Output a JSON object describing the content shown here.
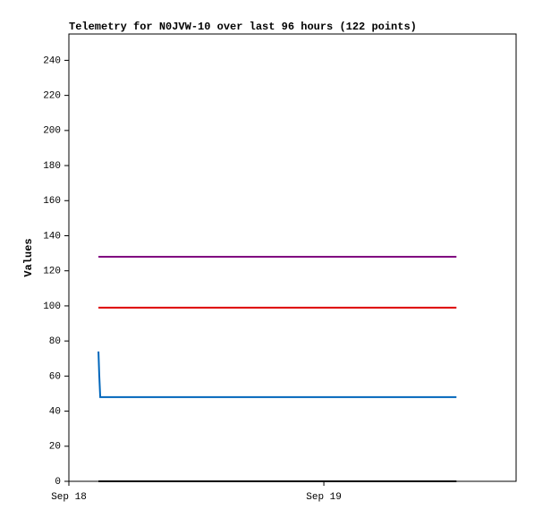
{
  "chart_data": {
    "type": "line",
    "title": "Telemetry for N0JVW-10 over last 96 hours (122 points)",
    "y_label": "Values",
    "x": [
      0.116,
      0.119,
      0.123,
      1.52
    ],
    "series": [
      {
        "color": "#800080",
        "values": [
          128,
          128,
          128,
          128
        ]
      },
      {
        "color": "#dd0000",
        "values": [
          99,
          99,
          99,
          99
        ]
      },
      {
        "color": "#0066bb",
        "values": [
          74,
          61,
          48,
          48
        ]
      },
      {
        "color": "#000000",
        "values": [
          0,
          0,
          0,
          0
        ]
      }
    ],
    "xlim": [
      0,
      1.754
    ],
    "xticks": [
      {
        "value": 0,
        "label": "Sep 18"
      },
      {
        "value": 1,
        "label": "Sep 19"
      }
    ],
    "ylim": [
      0,
      255
    ],
    "yticks": [
      0,
      20,
      40,
      60,
      80,
      100,
      120,
      140,
      160,
      180,
      200,
      220,
      240
    ],
    "grid": false
  }
}
